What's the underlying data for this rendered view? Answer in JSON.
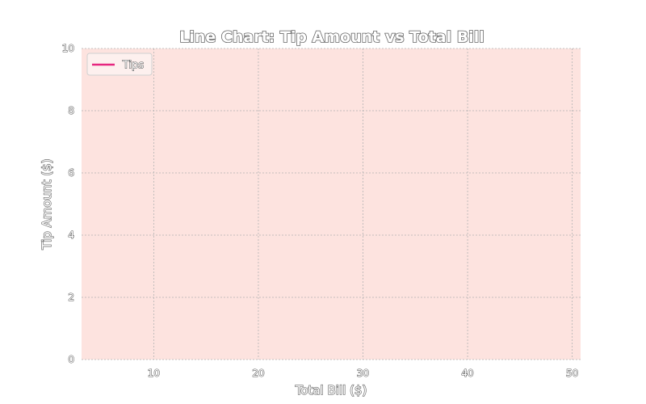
{
  "chart_data": {
    "type": "line",
    "title": "Line Chart: Tip Amount vs Total Bill",
    "xlabel": "Total Bill ($)",
    "ylabel": "Tip Amount ($)",
    "xlim": [
      3.1,
      50.8
    ],
    "ylim": [
      0,
      10
    ],
    "xticks": [
      10,
      20,
      30,
      40,
      50
    ],
    "yticks": [
      0,
      2,
      4,
      6,
      8,
      10
    ],
    "grid": true,
    "legend_position": "top-left",
    "series": [
      {
        "name": "Tips",
        "color": "#e6267f",
        "x": [],
        "y": []
      }
    ],
    "colors": {
      "plot_background": "#fde3df",
      "grid": "#b3b3b3",
      "spine": "#ffffff"
    }
  }
}
